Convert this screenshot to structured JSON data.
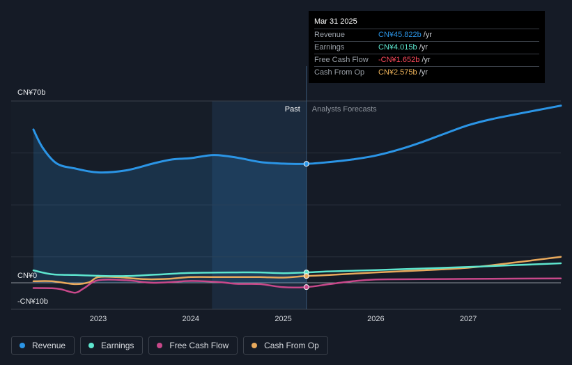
{
  "tooltip": {
    "date": "Mar 31 2025",
    "rows": [
      {
        "label": "Revenue",
        "value": "CN¥45.822b",
        "unit": "/yr",
        "color": "#2b95e6"
      },
      {
        "label": "Earnings",
        "value": "CN¥4.015b",
        "unit": "/yr",
        "color": "#5ee6cf"
      },
      {
        "label": "Free Cash Flow",
        "value": "-CN¥1.652b",
        "unit": "/yr",
        "color": "#ff4a5c"
      },
      {
        "label": "Cash From Op",
        "value": "CN¥2.575b",
        "unit": "/yr",
        "color": "#f0b45a"
      }
    ]
  },
  "regions": {
    "past": "Past",
    "forecast": "Analysts Forecasts"
  },
  "legend": [
    {
      "label": "Revenue",
      "color": "#2b95e6"
    },
    {
      "label": "Earnings",
      "color": "#5ee6cf"
    },
    {
      "label": "Free Cash Flow",
      "color": "#c8488a"
    },
    {
      "label": "Cash From Op",
      "color": "#e8a95c"
    }
  ],
  "chart_data": {
    "type": "line",
    "ylim": [
      -10,
      70
    ],
    "y_tick_labels": [
      "CN¥70b",
      "CN¥0",
      "-CN¥10b"
    ],
    "x_ticks": [
      2023,
      2024,
      2025,
      2026,
      2027
    ],
    "x_tick_labels": [
      "2023",
      "2024",
      "2025",
      "2026",
      "2027"
    ],
    "xlim": [
      2022.3,
      2028.0
    ],
    "past_end": 2025.25,
    "highlight_start": 2024.23,
    "grid": true,
    "series": [
      {
        "name": "Revenue",
        "color": "#2b95e6",
        "x": [
          2022.3,
          2022.4,
          2022.55,
          2022.75,
          2023.0,
          2023.3,
          2023.6,
          2023.8,
          2024.0,
          2024.25,
          2024.5,
          2024.75,
          2025.0,
          2025.25,
          2025.5,
          2025.75,
          2026.0,
          2026.25,
          2026.5,
          2026.75,
          2027.0,
          2027.25,
          2027.5,
          2027.75,
          2028.0
        ],
        "y": [
          59,
          52,
          46,
          44,
          42.5,
          43.3,
          46,
          47.5,
          48,
          49.2,
          48.2,
          46.5,
          45.9,
          45.8,
          46.5,
          47.5,
          49,
          51.3,
          54.2,
          57.5,
          60.7,
          63,
          64.8,
          66.5,
          68.2
        ]
      },
      {
        "name": "Earnings",
        "color": "#5ee6cf",
        "x": [
          2022.3,
          2022.5,
          2022.75,
          2023.0,
          2023.3,
          2023.6,
          2024.0,
          2024.5,
          2024.75,
          2025.0,
          2025.25,
          2025.5,
          2026.0,
          2026.5,
          2027.0,
          2027.5,
          2028.0
        ],
        "y": [
          4.8,
          3.3,
          3,
          2.7,
          2.6,
          3.1,
          3.8,
          4,
          4,
          3.7,
          4.0,
          4.4,
          4.9,
          5.5,
          6.1,
          6.8,
          7.5
        ]
      },
      {
        "name": "Free Cash Flow",
        "color": "#c8488a",
        "x": [
          2022.3,
          2022.5,
          2022.6,
          2022.75,
          2022.85,
          2023.0,
          2023.3,
          2023.6,
          2024.0,
          2024.3,
          2024.5,
          2024.75,
          2025.0,
          2025.25,
          2025.5,
          2025.75,
          2026.0,
          2026.5,
          2027.0,
          2027.5,
          2028.0
        ],
        "y": [
          -2,
          -2.1,
          -2.5,
          -3.8,
          -2,
          1,
          1,
          0,
          0.7,
          0.3,
          -0.4,
          -0.5,
          -1.7,
          -1.65,
          -0.5,
          0.6,
          1.3,
          1.4,
          1.5,
          1.6,
          1.7
        ]
      },
      {
        "name": "Cash From Op",
        "color": "#e8a95c",
        "x": [
          2022.3,
          2022.5,
          2022.75,
          2022.9,
          2023.0,
          2023.2,
          2023.5,
          2023.75,
          2024.0,
          2024.3,
          2024.5,
          2024.75,
          2025.0,
          2025.25,
          2025.5,
          2026.0,
          2026.5,
          2027.0,
          2027.5,
          2028.0
        ],
        "y": [
          0.6,
          0.6,
          -0.5,
          0.2,
          2.2,
          2.2,
          1.4,
          1.5,
          2.2,
          2.2,
          2.2,
          2.2,
          2.0,
          2.6,
          3,
          4,
          4.8,
          5.8,
          7.8,
          10
        ]
      }
    ]
  }
}
